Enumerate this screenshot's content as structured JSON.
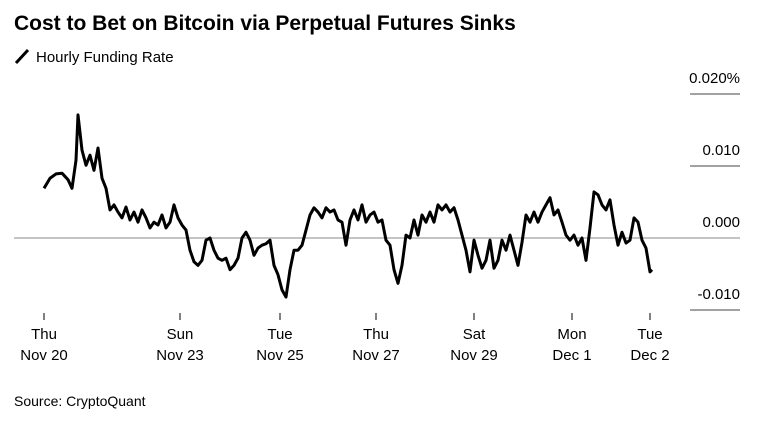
{
  "chart_data": {
    "type": "line",
    "title": "Cost to Bet on Bitcoin via Perpetual Futures Sinks",
    "source": "Source: CryptoQuant",
    "xlim": [
      0,
      304
    ],
    "xticks": [
      {
        "value": 0,
        "label": "Thu\nNov 20"
      },
      {
        "value": 68,
        "label": "Sun\nNov 23"
      },
      {
        "value": 118,
        "label": "Tue\nNov 25"
      },
      {
        "value": 166,
        "label": "Thu\nNov 27"
      },
      {
        "value": 215,
        "label": "Sat\nNov 29"
      },
      {
        "value": 264,
        "label": "Mon\nDec 1"
      },
      {
        "value": 303,
        "label": "Tue\nDec 2"
      }
    ],
    "ylim": [
      -0.01,
      0.02
    ],
    "yticks": [
      {
        "value": 0.02,
        "label": "0.020%"
      },
      {
        "value": 0.01,
        "label": "0.010"
      },
      {
        "value": 0,
        "label": "0.000"
      },
      {
        "value": -0.01,
        "label": "-0.010"
      }
    ],
    "x": [
      0,
      3,
      6,
      9,
      12,
      14,
      16,
      17,
      19,
      21,
      23,
      25,
      27,
      29,
      31,
      33,
      35,
      37,
      39,
      41,
      43,
      45,
      47,
      49,
      51,
      53,
      55,
      57,
      59,
      61,
      63,
      65,
      67,
      69,
      71,
      73,
      75,
      77,
      79,
      81,
      83,
      85,
      87,
      89,
      91,
      93,
      95,
      97,
      99,
      101,
      103,
      105,
      107,
      109,
      111,
      113,
      115,
      117,
      119,
      121,
      123,
      125,
      127,
      129,
      131,
      133,
      135,
      137,
      139,
      141,
      143,
      145,
      147,
      149,
      151,
      153,
      155,
      157,
      159,
      161,
      163,
      165,
      167,
      169,
      171,
      173,
      175,
      177,
      179,
      181,
      183,
      185,
      187,
      189,
      191,
      193,
      195,
      197,
      199,
      201,
      203,
      205,
      207,
      209,
      211,
      213,
      215,
      217,
      219,
      221,
      223,
      225,
      227,
      229,
      231,
      233,
      235,
      237,
      239,
      241,
      243,
      245,
      247,
      249,
      251,
      253,
      255,
      257,
      259,
      261,
      263,
      265,
      267,
      269,
      271,
      273,
      275,
      277,
      279,
      281,
      283,
      285,
      287,
      289,
      291,
      293,
      295,
      297,
      299,
      301,
      303,
      304
    ],
    "series": [
      {
        "name": "Hourly Funding Rate",
        "color": "#000000",
        "values": [
          0.0069,
          0.0083,
          0.0089,
          0.009,
          0.0081,
          0.0069,
          0.0108,
          0.0171,
          0.0122,
          0.0101,
          0.0115,
          0.0094,
          0.0125,
          0.0083,
          0.0069,
          0.0039,
          0.0046,
          0.0036,
          0.0028,
          0.0043,
          0.0025,
          0.0036,
          0.0022,
          0.0039,
          0.0028,
          0.0014,
          0.0022,
          0.0018,
          0.0032,
          0.0014,
          0.0022,
          0.0046,
          0.0028,
          0.0018,
          0.0011,
          -0.0017,
          -0.0033,
          -0.0038,
          -0.0031,
          -0.0003,
          0.0,
          -0.0017,
          -0.0028,
          -0.0031,
          -0.0028,
          -0.0044,
          -0.0038,
          -0.0028,
          0.0,
          0.0008,
          -0.0003,
          -0.0024,
          -0.0014,
          -0.001,
          -0.0008,
          -0.0003,
          -0.0038,
          -0.0051,
          -0.0072,
          -0.0082,
          -0.0044,
          -0.0017,
          -0.0017,
          -0.001,
          0.0011,
          0.0032,
          0.0042,
          0.0036,
          0.0028,
          0.0042,
          0.0036,
          0.0039,
          0.0025,
          0.0022,
          -0.001,
          0.0025,
          0.0039,
          0.0025,
          0.0046,
          0.0022,
          0.0032,
          0.0036,
          0.0022,
          0.0025,
          -0.0003,
          -0.001,
          -0.0044,
          -0.0063,
          -0.0038,
          0.0004,
          0.0,
          0.0025,
          0.0004,
          0.0032,
          0.0022,
          0.0036,
          0.0022,
          0.0046,
          0.0039,
          0.0046,
          0.0036,
          0.0042,
          0.0025,
          0.0004,
          -0.0017,
          -0.0047,
          -0.0003,
          -0.0024,
          -0.0042,
          -0.0031,
          -0.0003,
          -0.0042,
          -0.0031,
          -0.0003,
          -0.0017,
          0.0004,
          -0.0017,
          -0.0038,
          -0.0006,
          0.0032,
          0.0022,
          0.0036,
          0.0022,
          0.0036,
          0.0046,
          0.0056,
          0.0032,
          0.0039,
          0.0022,
          0.0004,
          -0.0003,
          0.0004,
          -0.001,
          0.0,
          -0.0031,
          0.0014,
          0.0064,
          0.006,
          0.0046,
          0.0039,
          0.0053,
          0.0018,
          -0.001,
          0.0008,
          -0.0007,
          -0.0003,
          0.0028,
          0.0022,
          -0.0003,
          -0.0014,
          -0.0047,
          -0.0044
        ]
      }
    ]
  }
}
